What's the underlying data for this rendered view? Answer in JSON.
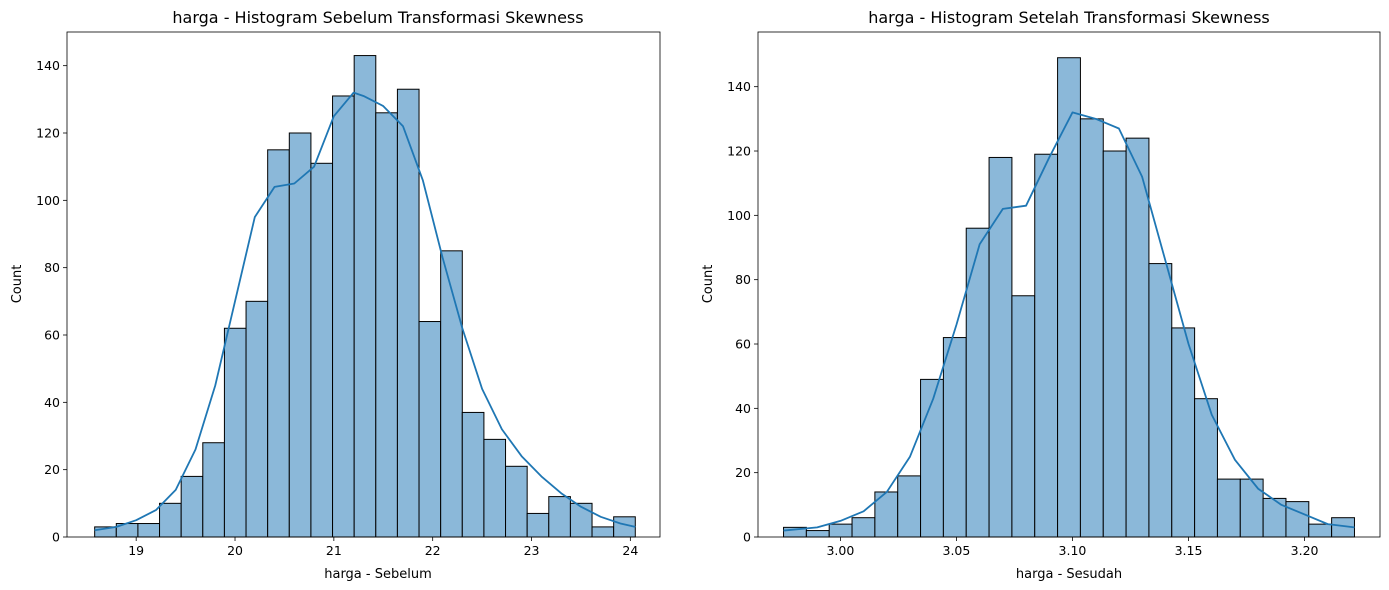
{
  "chart_data": [
    {
      "type": "bar",
      "title": "harga - Histogram Sebelum Transformasi Skewness",
      "xlabel": "harga - Sebelum",
      "ylabel": "Count",
      "xlim": [
        18.3,
        24.3
      ],
      "ylim": [
        0,
        150
      ],
      "xticks": [
        "19",
        "20",
        "21",
        "22",
        "23",
        "24"
      ],
      "xtick_values": [
        19,
        20,
        21,
        22,
        23,
        24
      ],
      "yticks": [
        "0",
        "20",
        "40",
        "60",
        "80",
        "100",
        "120",
        "140"
      ],
      "ytick_values": [
        0,
        20,
        40,
        60,
        80,
        100,
        120,
        140
      ],
      "bin_start": 18.58,
      "bin_end": 24.05,
      "counts": [
        3,
        4,
        4,
        10,
        18,
        28,
        62,
        70,
        115,
        120,
        111,
        131,
        143,
        126,
        133,
        64,
        85,
        37,
        29,
        21,
        7,
        12,
        10,
        3,
        6
      ],
      "kde": {
        "x": [
          18.58,
          18.8,
          19.0,
          19.2,
          19.4,
          19.6,
          19.8,
          20.0,
          20.2,
          20.4,
          20.6,
          20.8,
          21.0,
          21.2,
          21.3,
          21.5,
          21.7,
          21.9,
          22.1,
          22.3,
          22.5,
          22.7,
          22.9,
          23.1,
          23.3,
          23.5,
          23.7,
          23.9,
          24.05
        ],
        "y": [
          2,
          3,
          5,
          8,
          14,
          26,
          45,
          70,
          95,
          104,
          105,
          110,
          125,
          132,
          131,
          128,
          122,
          106,
          83,
          62,
          44,
          32,
          24,
          18,
          13,
          9,
          6,
          4,
          3
        ]
      },
      "bar_color": "#8bb8d9",
      "line_color": "#1f77b4"
    },
    {
      "type": "bar",
      "title": "harga - Histogram Setelah Transformasi Skewness",
      "xlabel": "harga - Sesudah",
      "ylabel": "Count",
      "xlim": [
        2.9645,
        3.2325
      ],
      "ylim": [
        0,
        157
      ],
      "xticks": [
        "3.00",
        "3.05",
        "3.10",
        "3.15",
        "3.20"
      ],
      "xtick_values": [
        3.0,
        3.05,
        3.1,
        3.15,
        3.2
      ],
      "yticks": [
        "0",
        "20",
        "40",
        "60",
        "80",
        "100",
        "120",
        "140"
      ],
      "ytick_values": [
        0,
        20,
        40,
        60,
        80,
        100,
        120,
        140
      ],
      "bin_start": 2.9755,
      "bin_end": 3.2215,
      "counts": [
        3,
        2,
        4,
        6,
        14,
        19,
        49,
        62,
        96,
        118,
        75,
        119,
        149,
        130,
        120,
        124,
        85,
        65,
        43,
        18,
        18,
        12,
        11,
        4,
        6
      ],
      "kde": {
        "x": [
          2.9755,
          2.99,
          3.0,
          3.01,
          3.02,
          3.03,
          3.04,
          3.05,
          3.06,
          3.07,
          3.08,
          3.09,
          3.1,
          3.11,
          3.12,
          3.13,
          3.14,
          3.15,
          3.16,
          3.17,
          3.18,
          3.19,
          3.2,
          3.21,
          3.2215
        ],
        "y": [
          2,
          3,
          5,
          8,
          14,
          25,
          43,
          66,
          91,
          102,
          103,
          118,
          132,
          130,
          127,
          112,
          86,
          60,
          38,
          24,
          15,
          10,
          7,
          4,
          3
        ]
      },
      "bar_color": "#8bb8d9",
      "line_color": "#1f77b4"
    }
  ]
}
